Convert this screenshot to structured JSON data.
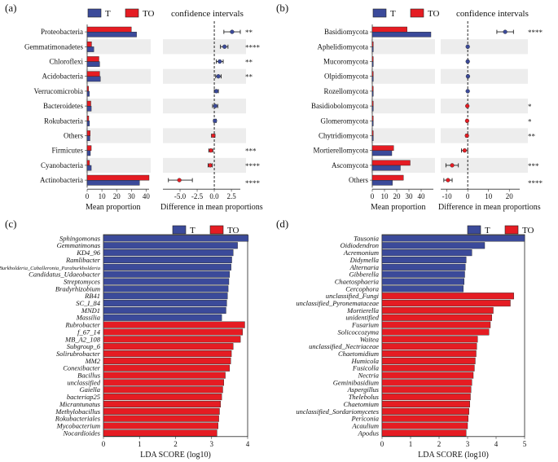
{
  "colors": {
    "T": "#3b4a9a",
    "TO": "#e51c23",
    "band": "#ededed",
    "axis": "#333333",
    "ci_dot_T": "#3b4a9a",
    "ci_dot_TO": "#e51c23"
  },
  "chart_data": [
    {
      "panel": "(a)",
      "type": "bar",
      "legend": [
        "T",
        "TO"
      ],
      "ci_title": "confidence intervals",
      "xlabel": "Mean proportion",
      "ci_xlabel": "Difference in mean proportions",
      "xlim": [
        0,
        42
      ],
      "xticks": [
        "0",
        "10",
        "20",
        "30",
        "40"
      ],
      "ci_xlim": [
        -7.5,
        3.8
      ],
      "ci_ticks": [
        -5.0,
        -2.5,
        0.0,
        2.5
      ],
      "ci_ticklabels": [
        "-5.0",
        "-2.5",
        "0.0",
        "2.5"
      ],
      "categories": [
        "Proteobacteria",
        "Gemmatimonadetes",
        "Chloroflexi",
        "Acidobacteria",
        "Verrucomicrobia",
        "Bacteroidetes",
        "Rokubacteria",
        "Others",
        "Firmicutes",
        "Cyanobacteria",
        "Actinobacteria"
      ],
      "series": [
        {
          "name": "T",
          "values": [
            33.5,
            4.5,
            8.5,
            9.0,
            1.5,
            2.8,
            1.6,
            1.9,
            2.2,
            2.8,
            35.5
          ]
        },
        {
          "name": "TO",
          "values": [
            30.0,
            3.0,
            8.0,
            8.5,
            1.0,
            2.5,
            1.1,
            2.1,
            2.8,
            1.6,
            42.0
          ]
        }
      ],
      "diff": [
        2.6,
        1.5,
        0.8,
        0.6,
        0.3,
        0.15,
        0.1,
        -0.15,
        -0.5,
        -0.6,
        -5.1
      ],
      "ci_low": [
        1.4,
        0.9,
        0.3,
        0.2,
        0.0,
        -0.25,
        -0.1,
        -0.4,
        -0.8,
        -0.9,
        -6.7
      ],
      "ci_high": [
        3.8,
        2.0,
        1.3,
        1.0,
        0.6,
        0.5,
        0.3,
        0.1,
        -0.2,
        -0.3,
        -3.2
      ],
      "significance": [
        "**",
        "****",
        "**",
        "**",
        "",
        "",
        "",
        "",
        "***",
        "****",
        "****"
      ]
    },
    {
      "panel": "(b)",
      "type": "bar",
      "legend": [
        "T",
        "TO"
      ],
      "ci_title": "confidence intervals",
      "xlabel": "Mean proportion",
      "ci_xlabel": "Difference in mean proportions",
      "xlim": [
        0,
        50
      ],
      "xticks": [
        "0",
        "10",
        "20",
        "30",
        "40"
      ],
      "ci_xlim": [
        -13,
        25
      ],
      "ci_ticks": [
        -10,
        0,
        10,
        20
      ],
      "ci_ticklabels": [
        "-10",
        "0",
        "10",
        "20"
      ],
      "categories": [
        "Basidiomycota",
        "Aphelidiomycota",
        "Mucoromycota",
        "Olpidiomycota",
        "Rozellomycota",
        "Basidiobolomycota",
        "Glomeromycota",
        "Chytridiomycota",
        "Mortierellomycota",
        "Ascomycota",
        "Others"
      ],
      "series": [
        {
          "name": "T",
          "values": [
            48.0,
            0.2,
            0.3,
            0.4,
            0.1,
            0.3,
            0.3,
            0.4,
            16.0,
            23.0,
            16.5
          ]
        },
        {
          "name": "TO",
          "values": [
            28.5,
            0.2,
            0.3,
            0.3,
            0.1,
            0.5,
            0.6,
            0.8,
            17.5,
            31.0,
            25.5
          ]
        }
      ],
      "diff": [
        18.0,
        0.0,
        0.0,
        0.1,
        0.0,
        -0.2,
        -0.3,
        -0.4,
        -1.5,
        -7.5,
        -9.5
      ],
      "ci_low": [
        14.0,
        -0.3,
        -0.4,
        -0.3,
        -0.2,
        -0.6,
        -0.7,
        -0.9,
        -3.0,
        -10.5,
        -11.5
      ],
      "ci_high": [
        22.0,
        0.3,
        0.4,
        0.4,
        0.2,
        0.2,
        0.1,
        0.1,
        0.0,
        -4.5,
        -7.5
      ],
      "significance": [
        "****",
        "",
        "",
        "",
        "",
        "*",
        "*",
        "**",
        "",
        "***",
        "****"
      ]
    },
    {
      "panel": "(c)",
      "type": "bar",
      "orientation": "horizontal",
      "legend": [
        "T",
        "TO"
      ],
      "xlabel": "LDA SCORE (log10)",
      "xlim": [
        0,
        4
      ],
      "xticks": [
        "0",
        "1",
        "2",
        "3",
        "4"
      ],
      "categories": [
        "Sphingomonas",
        "Gemmatimonas",
        "KD4_96",
        "Ramlibacter",
        "Burkholderia_Caballeronia_Paraburkholderia",
        "Candidatus_Udaeobacter",
        "Streptomyces",
        "Bradyrhizobium",
        "RB41",
        "SC_I_84",
        "MND1",
        "Massilia",
        "Rubrobacter",
        "f_67_14",
        "MB_A2_108",
        "Subgroup_6",
        "Solirubrobacter",
        "MM2",
        "Conexibacter",
        "Bacillus",
        "unclassified",
        "Gaiella",
        "bacteriap25",
        "Micrantunatus",
        "Methylobacillus",
        "Rokubacteriales",
        "Mycobacterium",
        "Nocardioides"
      ],
      "values": [
        4.02,
        3.72,
        3.6,
        3.56,
        3.54,
        3.5,
        3.48,
        3.46,
        3.44,
        3.42,
        3.4,
        3.28,
        3.92,
        3.86,
        3.8,
        3.6,
        3.55,
        3.53,
        3.5,
        3.38,
        3.34,
        3.31,
        3.28,
        3.25,
        3.22,
        3.2,
        3.18,
        3.15
      ],
      "group": [
        "T",
        "T",
        "T",
        "T",
        "T",
        "T",
        "T",
        "T",
        "T",
        "T",
        "T",
        "T",
        "TO",
        "TO",
        "TO",
        "TO",
        "TO",
        "TO",
        "TO",
        "TO",
        "TO",
        "TO",
        "TO",
        "TO",
        "TO",
        "TO",
        "TO",
        "TO"
      ]
    },
    {
      "panel": "(d)",
      "type": "bar",
      "orientation": "horizontal",
      "legend": [
        "T",
        "TO"
      ],
      "xlabel": "LDA SCORE (log10)",
      "xlim": [
        0,
        5
      ],
      "xticks": [
        "0",
        "1",
        "2",
        "3",
        "4",
        "5"
      ],
      "categories": [
        "Tausonia",
        "Oidiodendron",
        "Acremonium",
        "Didymella",
        "Alternaria",
        "Gibberella",
        "Chaetosphaeria",
        "Cercophora",
        "unclassified_Fungi",
        "unclassified_Pyronemataceae",
        "Mortierella",
        "unidentified",
        "Fusarium",
        "Solicoccozyma",
        "Waitea",
        "unclassified_Nectriaceae",
        "Chaetomidium",
        "Humicola",
        "Fusicolla",
        "Nectria",
        "Geminibasidium",
        "Aspergillus",
        "Thelebolus",
        "Chaetomium",
        "unclassified_Sordariomycetes",
        "Periconia",
        "Acaulium",
        "Apodus"
      ],
      "values": [
        5.0,
        3.6,
        3.15,
        2.95,
        2.92,
        2.9,
        2.88,
        2.85,
        4.62,
        4.5,
        3.9,
        3.85,
        3.8,
        3.75,
        3.35,
        3.32,
        3.3,
        3.27,
        3.24,
        3.2,
        3.15,
        3.12,
        3.1,
        3.08,
        3.05,
        3.02,
        3.0,
        2.95
      ],
      "group": [
        "T",
        "T",
        "T",
        "T",
        "T",
        "T",
        "T",
        "T",
        "TO",
        "TO",
        "TO",
        "TO",
        "TO",
        "TO",
        "TO",
        "TO",
        "TO",
        "TO",
        "TO",
        "TO",
        "TO",
        "TO",
        "TO",
        "TO",
        "TO",
        "TO",
        "TO",
        "TO"
      ]
    }
  ]
}
